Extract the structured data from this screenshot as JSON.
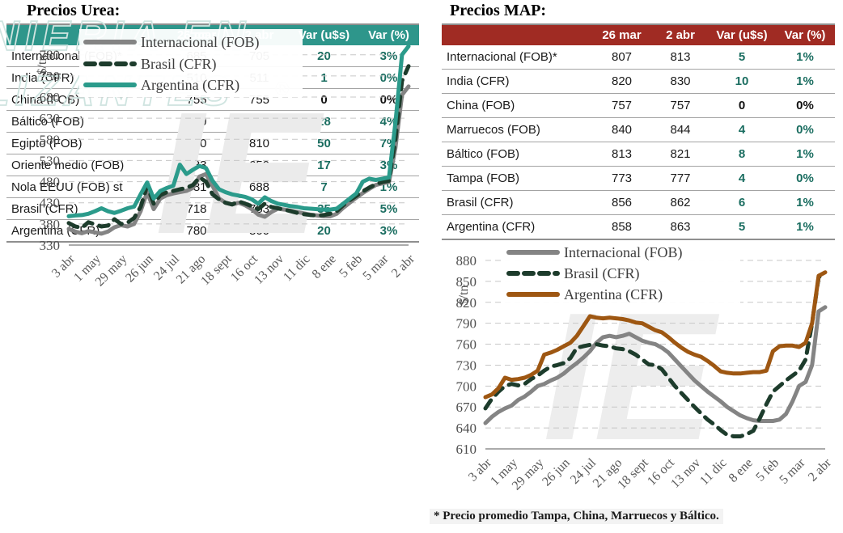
{
  "page": {
    "background": "#ffffff"
  },
  "urea": {
    "title": "Precios Urea:",
    "table": {
      "header_bg": "#2E968B",
      "var_color": "#1A6D60",
      "zero_color": "#111111",
      "columns": [
        "",
        "26 mar",
        "2 abr",
        "Var (u$s)",
        "Var (%)"
      ],
      "rows": [
        {
          "label": "Internacional (FOB)*",
          "v_26mar": "685",
          "v_2abr": "705",
          "var_usd": "20",
          "var_pct": "3%"
        },
        {
          "label": "India (CFR)",
          "v_26mar": "510",
          "v_2abr": "511",
          "var_usd": "1",
          "var_pct": "0%"
        },
        {
          "label": "China (FOB)",
          "v_26mar": "755",
          "v_2abr": "755",
          "var_usd": "0",
          "var_pct": "0%"
        },
        {
          "label": "Báltico (FOB)",
          "v_26mar": "670",
          "v_2abr": "698",
          "var_usd": "28",
          "var_pct": "4%"
        },
        {
          "label": "Egipto (FOB)",
          "v_26mar": "760",
          "v_2abr": "810",
          "var_usd": "50",
          "var_pct": "7%"
        },
        {
          "label": "Oriente medio (FOB)",
          "v_26mar": "633",
          "v_2abr": "650",
          "var_usd": "17",
          "var_pct": "3%"
        },
        {
          "label": "Nola EEUU (FOB) st",
          "v_26mar": "681",
          "v_2abr": "688",
          "var_usd": "7",
          "var_pct": "1%"
        },
        {
          "label": "Brasil (CFR)",
          "v_26mar": "718",
          "v_2abr": "753",
          "var_usd": "35",
          "var_pct": "5%"
        },
        {
          "label": "Argentina (CFR)",
          "v_26mar": "780",
          "v_2abr": "800",
          "var_usd": "20",
          "var_pct": "3%"
        }
      ]
    }
  },
  "map": {
    "title": "Precios MAP:",
    "footnote": "* Precio promedio Tampa, China, Marruecos y Báltico.",
    "table": {
      "header_bg": "#A02B23",
      "var_color": "#1A6D60",
      "zero_color": "#111111",
      "columns": [
        "",
        "26 mar",
        "2 abr",
        "Var (u$s)",
        "Var (%)"
      ],
      "rows": [
        {
          "label": "Internacional (FOB)*",
          "v_26mar": "807",
          "v_2abr": "813",
          "var_usd": "5",
          "var_pct": "1%"
        },
        {
          "label": "India (CFR)",
          "v_26mar": "820",
          "v_2abr": "830",
          "var_usd": "10",
          "var_pct": "1%"
        },
        {
          "label": "China (FOB)",
          "v_26mar": "757",
          "v_2abr": "757",
          "var_usd": "0",
          "var_pct": "0%"
        },
        {
          "label": "Marruecos (FOB)",
          "v_26mar": "840",
          "v_2abr": "844",
          "var_usd": "4",
          "var_pct": "0%"
        },
        {
          "label": "Báltico (FOB)",
          "v_26mar": "813",
          "v_2abr": "821",
          "var_usd": "8",
          "var_pct": "1%"
        },
        {
          "label": "Tampa (FOB)",
          "v_26mar": "773",
          "v_2abr": "777",
          "var_usd": "4",
          "var_pct": "0%"
        },
        {
          "label": "Brasil (CFR)",
          "v_26mar": "856",
          "v_2abr": "862",
          "var_usd": "6",
          "var_pct": "1%"
        },
        {
          "label": "Argentina (CFR)",
          "v_26mar": "858",
          "v_2abr": "863",
          "var_usd": "5",
          "var_pct": "1%"
        }
      ]
    }
  },
  "watermark": {
    "line1": "NIERIA EN",
    "line2": "LIZANTES",
    "registered": "®"
  },
  "chart_data": [
    {
      "id": "urea",
      "type": "line",
      "title": "",
      "xlabel": "",
      "ylabel": "$/tn",
      "ylim": [
        330,
        810
      ],
      "yticks": [
        330,
        380,
        430,
        480,
        530,
        580,
        630,
        680,
        730,
        780
      ],
      "grid": true,
      "legend_position": "top-left",
      "n_points": 53,
      "tick_every": 4,
      "x_tick_labels": [
        "3 abr",
        "1 may",
        "29 may",
        "26 jun",
        "24 jul",
        "21 ago",
        "18 sept",
        "16 oct",
        "13 nov",
        "11 dic",
        "8 ene",
        "5 feb",
        "5 mar",
        "2 abr"
      ],
      "series": [
        {
          "name": "Internacional (FOB)",
          "color": "#848484",
          "dash": null,
          "values": [
            368,
            362,
            358,
            363,
            360,
            357,
            362,
            372,
            377,
            374,
            380,
            410,
            455,
            415,
            440,
            448,
            452,
            455,
            458,
            465,
            492,
            498,
            470,
            440,
            430,
            426,
            430,
            424,
            415,
            402,
            397,
            408,
            416,
            414,
            411,
            408,
            405,
            402,
            400,
            398,
            398,
            404,
            418,
            430,
            442,
            453,
            463,
            472,
            476,
            479,
            560,
            685,
            705
          ]
        },
        {
          "name": "Brasil (CFR)",
          "color": "#1D3C2C",
          "dash": "12 9",
          "values": [
            382,
            374,
            371,
            384,
            379,
            374,
            376,
            391,
            380,
            383,
            394,
            420,
            470,
            428,
            448,
            455,
            458,
            462,
            465,
            472,
            490,
            480,
            450,
            438,
            430,
            426,
            433,
            428,
            422,
            415,
            428,
            420,
            417,
            414,
            410,
            406,
            403,
            401,
            400,
            401,
            404,
            410,
            424,
            436,
            446,
            457,
            466,
            474,
            479,
            482,
            580,
            718,
            753
          ]
        },
        {
          "name": "Argentina (CFR)",
          "color": "#2B9B8B",
          "dash": null,
          "values": [
            398,
            400,
            401,
            404,
            410,
            417,
            410,
            406,
            411,
            417,
            421,
            450,
            478,
            440,
            458,
            465,
            470,
            520,
            498,
            508,
            517,
            512,
            482,
            462,
            455,
            450,
            447,
            444,
            438,
            428,
            443,
            434,
            428,
            425,
            422,
            420,
            417,
            416,
            415,
            414,
            414,
            416,
            428,
            440,
            452,
            480,
            487,
            484,
            487,
            490,
            620,
            780,
            800
          ]
        }
      ]
    },
    {
      "id": "map",
      "type": "line",
      "title": "",
      "xlabel": "",
      "ylabel": "$/tn",
      "ylim": [
        610,
        880
      ],
      "yticks": [
        610,
        640,
        670,
        700,
        730,
        760,
        790,
        820,
        850,
        880
      ],
      "grid": true,
      "legend_position": "top-left",
      "n_points": 53,
      "tick_every": 4,
      "x_tick_labels": [
        "3 abr",
        "1 may",
        "29 may",
        "26 jun",
        "24 jul",
        "21 ago",
        "18 sept",
        "16 oct",
        "13 nov",
        "11 dic",
        "8 ene",
        "5 feb",
        "5 mar",
        "2 abr"
      ],
      "series": [
        {
          "name": "Internacional (FOB)",
          "color": "#848484",
          "dash": null,
          "values": [
            647,
            656,
            663,
            668,
            672,
            680,
            685,
            692,
            700,
            703,
            708,
            712,
            718,
            726,
            733,
            741,
            750,
            762,
            770,
            772,
            770,
            772,
            775,
            770,
            765,
            762,
            760,
            755,
            748,
            738,
            728,
            718,
            708,
            700,
            692,
            685,
            678,
            670,
            664,
            658,
            654,
            651,
            650,
            650,
            650,
            652,
            660,
            678,
            700,
            706,
            730,
            807,
            813
          ]
        },
        {
          "name": "Brasil (CFR)",
          "color": "#1D3C2C",
          "dash": "12 9",
          "values": [
            668,
            682,
            692,
            700,
            703,
            701,
            703,
            710,
            715,
            722,
            728,
            730,
            733,
            740,
            755,
            757,
            759,
            760,
            758,
            757,
            754,
            753,
            750,
            745,
            738,
            731,
            730,
            724,
            712,
            700,
            690,
            680,
            670,
            661,
            652,
            645,
            637,
            630,
            628,
            628,
            631,
            636,
            654,
            674,
            692,
            700,
            708,
            715,
            722,
            738,
            790,
            856,
            862
          ]
        },
        {
          "name": "Argentina (CFR)",
          "color": "#9E5712",
          "dash": null,
          "values": [
            684,
            688,
            697,
            712,
            709,
            710,
            712,
            716,
            722,
            745,
            748,
            752,
            757,
            762,
            772,
            786,
            800,
            798,
            797,
            798,
            797,
            796,
            794,
            791,
            790,
            785,
            780,
            777,
            770,
            762,
            755,
            749,
            745,
            742,
            736,
            729,
            721,
            719,
            718,
            718,
            719,
            720,
            720,
            722,
            750,
            757,
            758,
            758,
            756,
            762,
            790,
            858,
            863
          ]
        }
      ]
    }
  ]
}
